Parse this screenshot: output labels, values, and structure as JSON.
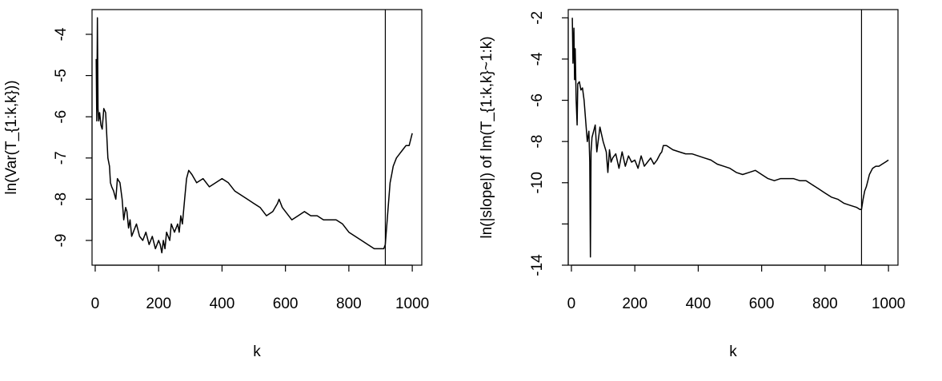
{
  "chart_data": [
    {
      "type": "line",
      "title": "",
      "xlabel": "k",
      "ylabel": "ln(Var(T_{1:k,k}))",
      "xlim": [
        -10,
        1030
      ],
      "ylim": [
        -9.6,
        -3.4
      ],
      "x_ticks": [
        0,
        200,
        400,
        600,
        800,
        1000
      ],
      "y_ticks": [
        -9,
        -8,
        -7,
        -6,
        -5,
        -4
      ],
      "grid": false,
      "vertical_line_x": 915,
      "series": [
        {
          "x": [
            3,
            5,
            7,
            9,
            11,
            14,
            18,
            22,
            27,
            33,
            40,
            45,
            48,
            52,
            58,
            65,
            70,
            78,
            85,
            90,
            96,
            100,
            105,
            110,
            115,
            120,
            130,
            140,
            150,
            160,
            170,
            180,
            190,
            200,
            205,
            210,
            215,
            220,
            225,
            235,
            240,
            250,
            260,
            265,
            270,
            275,
            282,
            288,
            295,
            305,
            320,
            340,
            360,
            380,
            400,
            420,
            440,
            460,
            480,
            500,
            520,
            540,
            560,
            575,
            580,
            590,
            600,
            620,
            640,
            660,
            680,
            700,
            720,
            740,
            760,
            780,
            800,
            820,
            840,
            860,
            880,
            900,
            910,
            915,
            920,
            925,
            930,
            935,
            940,
            950,
            960,
            970,
            980,
            990,
            1000
          ],
          "y": [
            -4.6,
            -6.1,
            -3.6,
            -5.8,
            -6.1,
            -5.9,
            -6.2,
            -6.3,
            -5.8,
            -5.9,
            -7.0,
            -7.2,
            -7.6,
            -7.7,
            -7.8,
            -8.0,
            -7.5,
            -7.6,
            -8.0,
            -8.5,
            -8.2,
            -8.3,
            -8.7,
            -8.5,
            -8.9,
            -8.8,
            -8.6,
            -8.9,
            -9.0,
            -8.8,
            -9.1,
            -8.9,
            -9.2,
            -9.0,
            -9.1,
            -9.3,
            -9.0,
            -9.2,
            -8.8,
            -9.0,
            -8.6,
            -8.8,
            -8.6,
            -8.8,
            -8.4,
            -8.6,
            -8.0,
            -7.5,
            -7.3,
            -7.4,
            -7.6,
            -7.5,
            -7.7,
            -7.6,
            -7.5,
            -7.6,
            -7.8,
            -7.9,
            -8.0,
            -8.1,
            -8.2,
            -8.4,
            -8.3,
            -8.1,
            -8.0,
            -8.2,
            -8.3,
            -8.5,
            -8.4,
            -8.3,
            -8.4,
            -8.4,
            -8.5,
            -8.5,
            -8.5,
            -8.6,
            -8.8,
            -8.9,
            -9.0,
            -9.1,
            -9.2,
            -9.2,
            -9.2,
            -9.1,
            -8.6,
            -8.1,
            -7.6,
            -7.4,
            -7.2,
            -7.0,
            -6.9,
            -6.8,
            -6.7,
            -6.7,
            -6.4
          ]
        }
      ]
    },
    {
      "type": "line",
      "title": "",
      "xlabel": "k",
      "ylabel": "ln(|slope|) of lm(T_{1:k,k}~1:k)",
      "xlim": [
        -10,
        1030
      ],
      "ylim": [
        -14.0,
        -1.6
      ],
      "x_ticks": [
        0,
        200,
        400,
        600,
        800,
        1000
      ],
      "y_ticks": [
        -14,
        -12,
        -10,
        -8,
        -6,
        -4,
        -2
      ],
      "y_tick_labels": [
        "-14",
        "",
        "-10",
        "-8",
        "-6",
        "-4",
        "-2"
      ],
      "grid": false,
      "vertical_line_x": 915,
      "series": [
        {
          "x": [
            3,
            5,
            8,
            10,
            12,
            15,
            18,
            20,
            25,
            30,
            35,
            40,
            45,
            50,
            55,
            58,
            60,
            62,
            65,
            70,
            75,
            80,
            90,
            100,
            110,
            115,
            120,
            125,
            130,
            140,
            150,
            160,
            170,
            180,
            190,
            200,
            210,
            220,
            230,
            240,
            250,
            260,
            270,
            280,
            285,
            290,
            300,
            320,
            340,
            360,
            380,
            400,
            420,
            440,
            460,
            480,
            500,
            520,
            540,
            560,
            580,
            600,
            620,
            640,
            660,
            680,
            700,
            720,
            740,
            760,
            780,
            800,
            820,
            840,
            860,
            880,
            900,
            910,
            915,
            920,
            925,
            930,
            935,
            940,
            950,
            960,
            970,
            980,
            990,
            1000
          ],
          "y": [
            -2.0,
            -4.2,
            -2.5,
            -5.0,
            -3.5,
            -6.0,
            -7.2,
            -5.2,
            -5.1,
            -5.5,
            -5.4,
            -6.0,
            -7.0,
            -8.0,
            -7.5,
            -9.0,
            -13.6,
            -8.5,
            -7.8,
            -7.5,
            -7.2,
            -8.5,
            -7.3,
            -8.0,
            -8.5,
            -9.5,
            -8.4,
            -9.0,
            -8.8,
            -8.6,
            -9.3,
            -8.5,
            -9.2,
            -8.7,
            -9.0,
            -8.9,
            -9.3,
            -8.7,
            -9.2,
            -9.0,
            -8.8,
            -9.1,
            -8.9,
            -8.6,
            -8.5,
            -8.2,
            -8.2,
            -8.4,
            -8.5,
            -8.6,
            -8.6,
            -8.7,
            -8.8,
            -8.9,
            -9.1,
            -9.2,
            -9.3,
            -9.5,
            -9.6,
            -9.5,
            -9.4,
            -9.6,
            -9.8,
            -9.9,
            -9.8,
            -9.8,
            -9.8,
            -9.9,
            -9.9,
            -10.1,
            -10.3,
            -10.5,
            -10.7,
            -10.8,
            -11.0,
            -11.1,
            -11.2,
            -11.3,
            -11.3,
            -10.8,
            -10.4,
            -10.2,
            -9.9,
            -9.6,
            -9.3,
            -9.2,
            -9.2,
            -9.1,
            -9.0,
            -8.9
          ]
        }
      ]
    }
  ]
}
